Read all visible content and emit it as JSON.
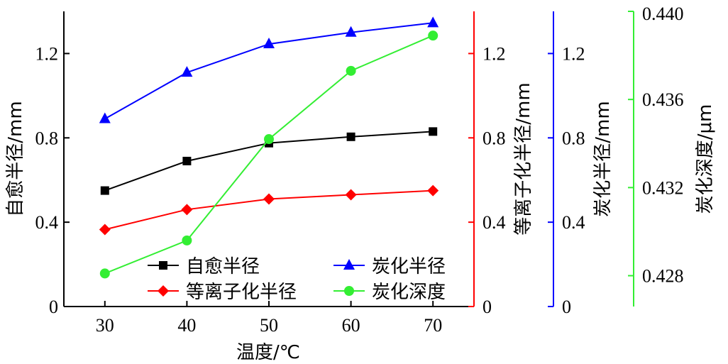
{
  "chart_data": {
    "type": "line",
    "x": [
      30,
      40,
      50,
      60,
      70
    ],
    "xlabel": "温度/℃",
    "xlim": [
      25,
      75
    ],
    "xticks": [
      "30",
      "40",
      "50",
      "60",
      "70"
    ],
    "grid": false,
    "legend_position": "bottom-center",
    "axes": [
      {
        "id": "y1",
        "label": "自愈半径/mm",
        "side": "left",
        "color": "#000000",
        "ylim": [
          0,
          1.4
        ],
        "ticks": [
          "0",
          "0.4",
          "0.8",
          "1.2"
        ]
      },
      {
        "id": "y2",
        "label": "等离子化半径/mm",
        "side": "right",
        "color": "#ff0000",
        "ylim": [
          0,
          1.4
        ],
        "ticks": [
          "0",
          "0.4",
          "0.8",
          "1.2"
        ]
      },
      {
        "id": "y3",
        "label": "炭化半径/mm",
        "side": "right",
        "color": "#0000ff",
        "ylim": [
          0,
          1.4
        ],
        "ticks": [
          "0",
          "0.4",
          "0.8",
          "1.2"
        ]
      },
      {
        "id": "y4",
        "label": "炭化深度/μm",
        "side": "right",
        "color": "#33ee33",
        "ylim": [
          0.4266,
          0.44
        ],
        "ticks": [
          "0.428",
          "0.432",
          "0.436",
          "0.440"
        ]
      }
    ],
    "series": [
      {
        "name": "自愈半径",
        "axis": "y1",
        "color": "#000000",
        "marker": "square",
        "values": [
          0.55,
          0.69,
          0.775,
          0.805,
          0.83
        ]
      },
      {
        "name": "等离子化半径",
        "axis": "y2",
        "color": "#ff0000",
        "marker": "diamond",
        "values": [
          0.365,
          0.46,
          0.51,
          0.53,
          0.55
        ]
      },
      {
        "name": "炭化半径",
        "axis": "y3",
        "color": "#0000ff",
        "marker": "triangle",
        "values": [
          0.89,
          1.11,
          1.245,
          1.3,
          1.345
        ]
      },
      {
        "name": "炭化深度",
        "axis": "y4",
        "color": "#33ee33",
        "marker": "circle",
        "values": [
          0.4281,
          0.4296,
          0.4342,
          0.4373,
          0.4389
        ]
      }
    ]
  }
}
